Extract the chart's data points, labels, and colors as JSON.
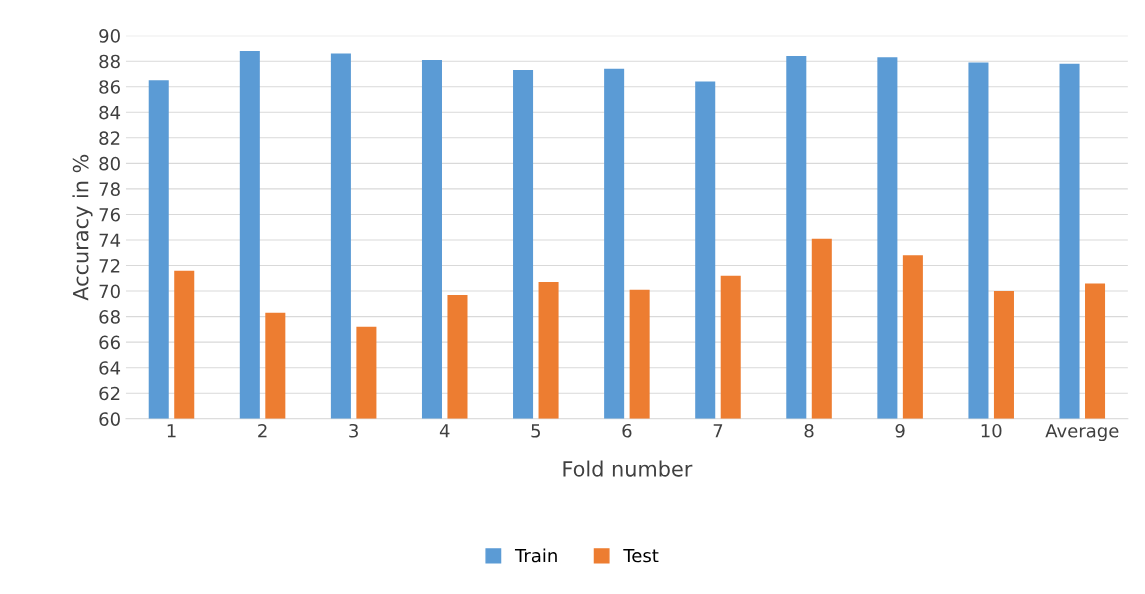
{
  "chart_data": {
    "type": "bar",
    "xlabel": "Fold number",
    "ylabel": "Accuracy in %",
    "categories": [
      "1",
      "2",
      "3",
      "4",
      "5",
      "6",
      "7",
      "8",
      "9",
      "10",
      "Average"
    ],
    "series": [
      {
        "name": "Train",
        "color": "#5b9bd5",
        "values": [
          86.5,
          88.8,
          88.6,
          88.1,
          87.3,
          87.4,
          86.4,
          88.4,
          88.3,
          87.9,
          87.8
        ]
      },
      {
        "name": "Test",
        "color": "#ed7d31",
        "values": [
          71.6,
          68.3,
          67.2,
          69.7,
          70.7,
          70.1,
          71.2,
          74.1,
          72.8,
          70.0,
          70.6
        ]
      }
    ],
    "ylim": [
      60,
      90
    ],
    "yticks": [
      60,
      62,
      64,
      66,
      68,
      70,
      72,
      74,
      76,
      78,
      80,
      82,
      84,
      86,
      88,
      90
    ],
    "grid": "y",
    "legend": "bottom"
  }
}
